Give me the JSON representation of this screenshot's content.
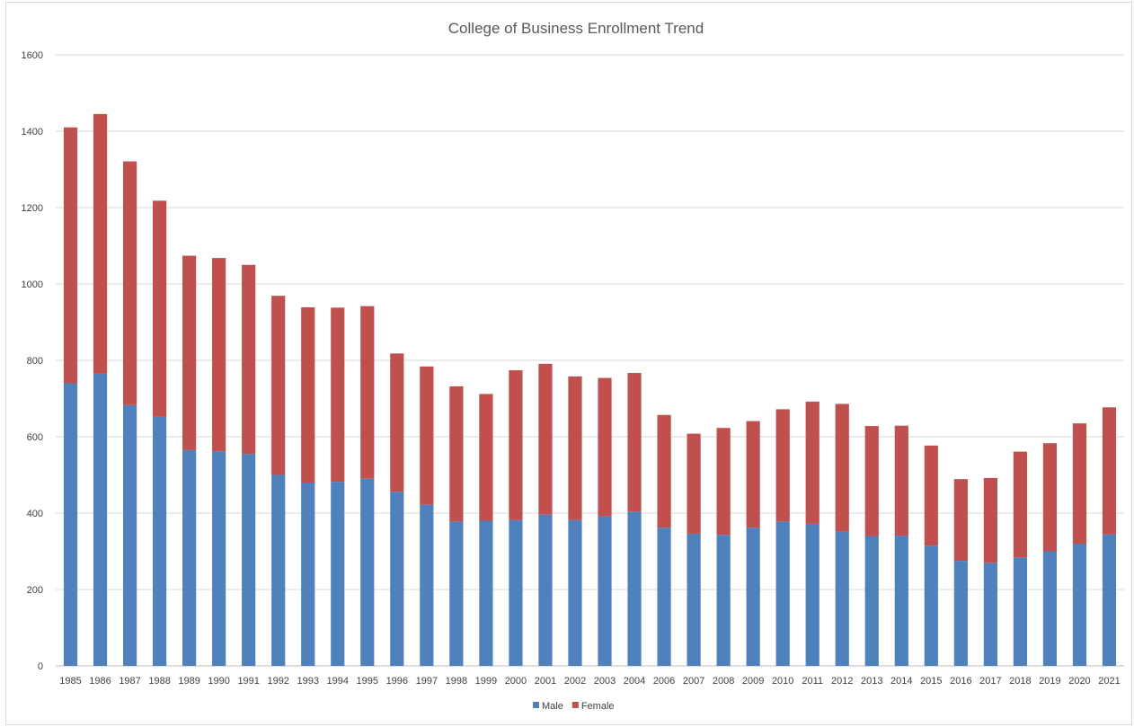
{
  "chart_data": {
    "type": "bar",
    "stacked": true,
    "title": "College of Business Enrollment Trend",
    "xlabel": "",
    "ylabel": "",
    "ylim": [
      0,
      1600
    ],
    "yticks": [
      0,
      200,
      400,
      600,
      800,
      1000,
      1200,
      1400,
      1600
    ],
    "grid": true,
    "legend_position": "bottom",
    "categories": [
      "1985",
      "1986",
      "1987",
      "1988",
      "1989",
      "1990",
      "1991",
      "1992",
      "1993",
      "1994",
      "1995",
      "1996",
      "1997",
      "1998",
      "1999",
      "2000",
      "2001",
      "2002",
      "2003",
      "2004",
      "2006",
      "2007",
      "2008",
      "2009",
      "2010",
      "2011",
      "2012",
      "2013",
      "2014",
      "2015",
      "2016",
      "2017",
      "2018",
      "2019",
      "2020",
      "2021"
    ],
    "series": [
      {
        "name": "Male",
        "color": "#4f81bd",
        "values": [
          740,
          765,
          683,
          652,
          565,
          562,
          555,
          500,
          480,
          482,
          490,
          456,
          422,
          378,
          380,
          382,
          396,
          382,
          392,
          404,
          362,
          346,
          343,
          362,
          378,
          372,
          352,
          340,
          341,
          315,
          275,
          270,
          284,
          300,
          320,
          344
        ]
      },
      {
        "name": "Female",
        "color": "#c0504d",
        "values": [
          670,
          680,
          638,
          566,
          509,
          506,
          495,
          469,
          459,
          456,
          452,
          362,
          362,
          354,
          332,
          392,
          395,
          376,
          362,
          363,
          295,
          262,
          280,
          279,
          294,
          320,
          334,
          288,
          288,
          262,
          214,
          222,
          277,
          283,
          315,
          333
        ]
      }
    ]
  }
}
